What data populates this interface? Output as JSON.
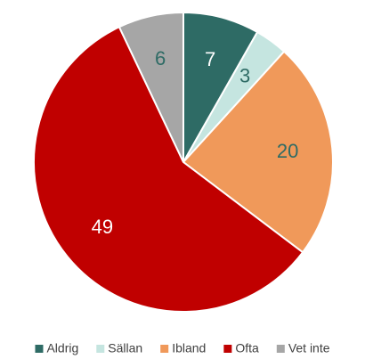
{
  "chart_data": {
    "type": "pie",
    "categories": [
      "Aldrig",
      "Sällan",
      "Ibland",
      "Ofta",
      "Vet inte"
    ],
    "values": [
      7,
      3,
      20,
      49,
      6
    ],
    "colors": [
      "#2e6b65",
      "#c5e5e0",
      "#f0995a",
      "#c00000",
      "#a6a6a6"
    ],
    "legend": "bottom"
  }
}
